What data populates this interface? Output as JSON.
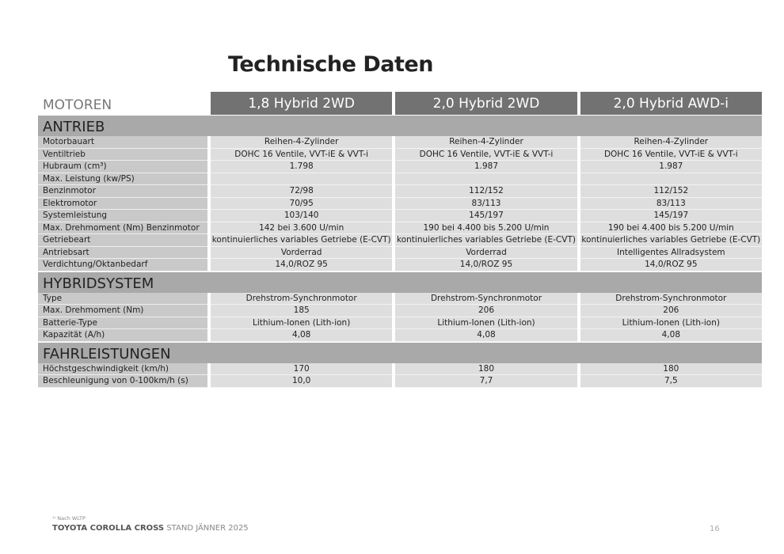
{
  "title": "Technische Daten",
  "header": {
    "label": "MOTOREN",
    "columns": [
      "1,8 Hybrid 2WD",
      "2,0 Hybrid 2WD",
      "2,0 Hybrid AWD-i"
    ]
  },
  "sections": [
    {
      "title": "ANTRIEB",
      "rows": [
        {
          "label": "Motorbauart",
          "values": [
            "Reihen-4-Zylinder",
            "Reihen-4-Zylinder",
            "Reihen-4-Zylinder"
          ]
        },
        {
          "label": "Ventiltrieb",
          "values": [
            "DOHC 16 Ventile, VVT-iE & VVT-i",
            "DOHC 16 Ventile, VVT-iE & VVT-i",
            "DOHC 16 Ventile, VVT-iE & VVT-i"
          ]
        },
        {
          "label": "Hubraum (cm³)",
          "values": [
            "1.798",
            "1.987",
            "1.987"
          ]
        },
        {
          "label": "Max. Leistung (kw/PS)",
          "values": [
            "",
            "",
            ""
          ]
        },
        {
          "label": "Benzinmotor",
          "values": [
            "72/98",
            "112/152",
            "112/152"
          ]
        },
        {
          "label": "Elektromotor",
          "values": [
            "70/95",
            "83/113",
            "83/113"
          ]
        },
        {
          "label": "Systemleistung",
          "values": [
            "103/140",
            "145/197",
            "145/197"
          ]
        },
        {
          "label": "Max. Drehmoment (Nm) Benzinmotor",
          "values": [
            "142 bei 3.600 U/min",
            "190 bei 4.400 bis 5.200 U/min",
            "190 bei 4.400 bis 5.200 U/min"
          ]
        },
        {
          "label": "Getriebeart",
          "values": [
            "kontinuierliches variables Getriebe (E-CVT)",
            "kontinuierliches variables Getriebe (E-CVT)",
            "kontinuierliches variables Getriebe (E-CVT)"
          ]
        },
        {
          "label": "Antriebsart",
          "values": [
            "Vorderrad",
            "Vorderrad",
            "Intelligentes Allradsystem"
          ]
        },
        {
          "label": "Verdichtung/Oktanbedarf",
          "values": [
            "14,0/ROZ 95",
            "14,0/ROZ 95",
            "14,0/ROZ 95"
          ]
        }
      ]
    },
    {
      "title": "HYBRIDSYSTEM",
      "rows": [
        {
          "label": "Type",
          "values": [
            "Drehstrom-Synchronmotor",
            "Drehstrom-Synchronmotor",
            "Drehstrom-Synchronmotor"
          ]
        },
        {
          "label": "Max. Drehmoment (Nm)",
          "values": [
            "185",
            "206",
            "206"
          ]
        },
        {
          "label": "Batterie-Type",
          "values": [
            "Lithium-Ionen (Lith-ion)",
            "Lithium-Ionen (Lith-ion)",
            "Lithium-Ionen (Lith-ion)"
          ]
        },
        {
          "label": "Kapazität (A/h)",
          "values": [
            "4,08",
            "4,08",
            "4,08"
          ]
        }
      ]
    },
    {
      "title": "FAHRLEISTUNGEN",
      "rows": [
        {
          "label": "Höchstgeschwindigkeit (km/h)",
          "values": [
            "170",
            "180",
            "180"
          ]
        },
        {
          "label": "Beschleunigung von 0-100km/h (s)",
          "values": [
            "10,0",
            "7,7",
            "7,5"
          ]
        }
      ]
    }
  ],
  "footer": {
    "note": "¹⁾ Nach WLTP",
    "brand": "TOYOTA COROLLA CROSS",
    "stand": "STAND JÄNNER 2025",
    "page": "16"
  }
}
